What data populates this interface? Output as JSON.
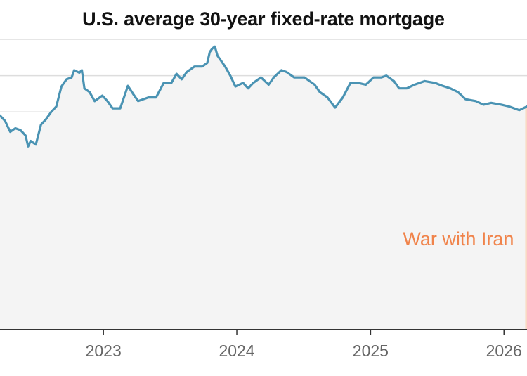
{
  "chart_data": {
    "type": "area",
    "title": "U.S. average 30-year fixed-rate mortgage",
    "xlabel": "",
    "ylabel": "",
    "x_range": [
      "2022-03-24",
      "2026-03-05"
    ],
    "ylim": [
      0,
      8
    ],
    "yticks": [
      0,
      1,
      2,
      3,
      4,
      5,
      6,
      7,
      8
    ],
    "xticks": [
      {
        "date": "2023-01-01",
        "label": "2023"
      },
      {
        "date": "2024-01-01",
        "label": "2024"
      },
      {
        "date": "2025-01-01",
        "label": "2025"
      },
      {
        "date": "2026-01-01",
        "label": "2026"
      }
    ],
    "grid": true,
    "series": [
      {
        "color": "#4a93b3",
        "points": [
          [
            "2022-03-24",
            5.9
          ],
          [
            "2022-04-07",
            5.75
          ],
          [
            "2022-04-21",
            5.45
          ],
          [
            "2022-05-05",
            5.55
          ],
          [
            "2022-05-19",
            5.5
          ],
          [
            "2022-06-02",
            5.35
          ],
          [
            "2022-06-09",
            5.05
          ],
          [
            "2022-06-16",
            5.2
          ],
          [
            "2022-06-30",
            5.1
          ],
          [
            "2022-07-14",
            5.65
          ],
          [
            "2022-07-28",
            5.8
          ],
          [
            "2022-08-11",
            6.0
          ],
          [
            "2022-08-25",
            6.15
          ],
          [
            "2022-09-08",
            6.7
          ],
          [
            "2022-09-22",
            6.9
          ],
          [
            "2022-10-06",
            6.95
          ],
          [
            "2022-10-13",
            7.15
          ],
          [
            "2022-10-27",
            7.08
          ],
          [
            "2022-11-03",
            7.15
          ],
          [
            "2022-11-10",
            6.65
          ],
          [
            "2022-11-24",
            6.55
          ],
          [
            "2022-12-08",
            6.3
          ],
          [
            "2022-12-29",
            6.45
          ],
          [
            "2023-01-12",
            6.3
          ],
          [
            "2023-01-26",
            6.1
          ],
          [
            "2023-02-16",
            6.1
          ],
          [
            "2023-03-09",
            6.72
          ],
          [
            "2023-03-23",
            6.5
          ],
          [
            "2023-04-06",
            6.3
          ],
          [
            "2023-05-04",
            6.4
          ],
          [
            "2023-05-25",
            6.4
          ],
          [
            "2023-06-15",
            6.8
          ],
          [
            "2023-07-06",
            6.8
          ],
          [
            "2023-07-20",
            7.05
          ],
          [
            "2023-08-03",
            6.9
          ],
          [
            "2023-08-17",
            7.1
          ],
          [
            "2023-09-07",
            7.25
          ],
          [
            "2023-09-28",
            7.25
          ],
          [
            "2023-10-12",
            7.35
          ],
          [
            "2023-10-19",
            7.65
          ],
          [
            "2023-10-26",
            7.75
          ],
          [
            "2023-11-02",
            7.8
          ],
          [
            "2023-11-09",
            7.55
          ],
          [
            "2023-11-30",
            7.25
          ],
          [
            "2023-12-14",
            7.0
          ],
          [
            "2023-12-28",
            6.7
          ],
          [
            "2024-01-18",
            6.8
          ],
          [
            "2024-02-01",
            6.65
          ],
          [
            "2024-02-15",
            6.8
          ],
          [
            "2024-03-07",
            6.95
          ],
          [
            "2024-03-28",
            6.75
          ],
          [
            "2024-04-11",
            6.95
          ],
          [
            "2024-05-02",
            7.15
          ],
          [
            "2024-05-16",
            7.1
          ],
          [
            "2024-06-06",
            6.95
          ],
          [
            "2024-07-04",
            6.95
          ],
          [
            "2024-08-01",
            6.75
          ],
          [
            "2024-08-15",
            6.55
          ],
          [
            "2024-09-05",
            6.4
          ],
          [
            "2024-09-26",
            6.12
          ],
          [
            "2024-10-17",
            6.4
          ],
          [
            "2024-11-07",
            6.8
          ],
          [
            "2024-11-28",
            6.8
          ],
          [
            "2024-12-19",
            6.75
          ],
          [
            "2025-01-09",
            6.95
          ],
          [
            "2025-01-30",
            6.95
          ],
          [
            "2025-02-13",
            7.0
          ],
          [
            "2025-03-06",
            6.85
          ],
          [
            "2025-03-20",
            6.65
          ],
          [
            "2025-04-10",
            6.65
          ],
          [
            "2025-05-01",
            6.75
          ],
          [
            "2025-05-29",
            6.85
          ],
          [
            "2025-06-26",
            6.8
          ],
          [
            "2025-07-17",
            6.72
          ],
          [
            "2025-08-07",
            6.65
          ],
          [
            "2025-08-28",
            6.55
          ],
          [
            "2025-09-18",
            6.35
          ],
          [
            "2025-10-16",
            6.3
          ],
          [
            "2025-11-06",
            6.2
          ],
          [
            "2025-11-27",
            6.25
          ],
          [
            "2025-12-25",
            6.2
          ],
          [
            "2026-01-15",
            6.15
          ],
          [
            "2026-02-12",
            6.05
          ],
          [
            "2026-03-05",
            6.15
          ]
        ]
      }
    ],
    "annotations": [
      {
        "label": "War with Iran",
        "date": "2026-02-28",
        "color": "#f0834a",
        "band_color": "#fad9c4"
      }
    ],
    "colors": {
      "line": "#4a93b3",
      "area": "#f4f4f4",
      "grid": "#dddddd",
      "axis": "#333333",
      "tick_text": "#666666"
    }
  }
}
